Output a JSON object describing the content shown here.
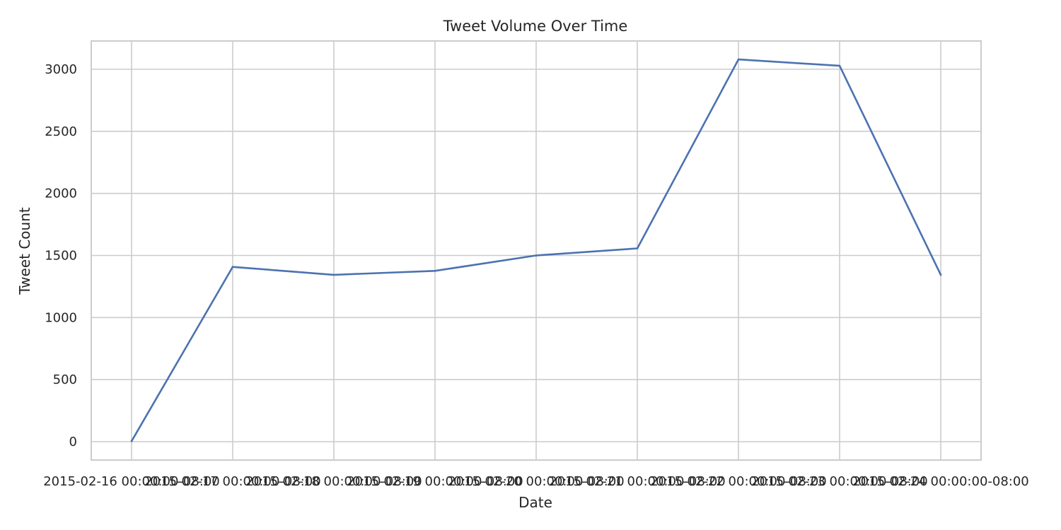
{
  "chart_data": {
    "type": "line",
    "title": "Tweet Volume Over Time",
    "xlabel": "Date",
    "ylabel": "Tweet Count",
    "x": [
      "2015-02-16 00:00:00-08:00",
      "2015-02-17 00:00:00-08:00",
      "2015-02-18 00:00:00-08:00",
      "2015-02-19 00:00:00-08:00",
      "2015-02-20 00:00:00-08:00",
      "2015-02-21 00:00:00-08:00",
      "2015-02-22 00:00:00-08:00",
      "2015-02-23 00:00:00-08:00",
      "2015-02-24 00:00:00-08:00"
    ],
    "series": [
      {
        "values": [
          4,
          1408,
          1344,
          1376,
          1500,
          1557,
          3079,
          3028,
          1344
        ]
      }
    ],
    "yticks": [
      "0",
      "500",
      "1000",
      "1500",
      "2000",
      "2500",
      "3000"
    ],
    "ylim": [
      -150,
      3230
    ],
    "grid": true,
    "line_color": "#4c72b0"
  }
}
